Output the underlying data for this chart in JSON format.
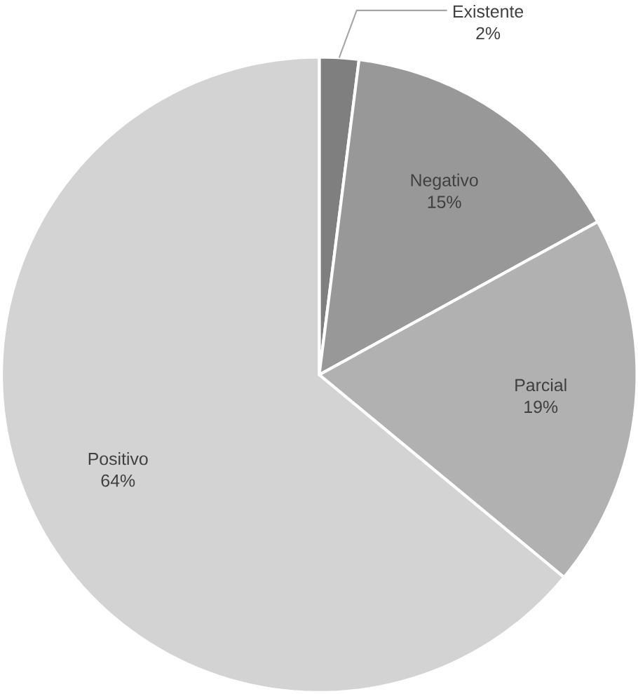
{
  "chart_data": {
    "type": "pie",
    "categories": [
      "Existente",
      "Negativo",
      "Parcial",
      "Positivo"
    ],
    "values": [
      2,
      15,
      19,
      64
    ],
    "value_labels": [
      "2%",
      "15%",
      "19%",
      "64%"
    ],
    "colors": [
      "#7f7f7f",
      "#989898",
      "#b1b1b1",
      "#d3d3d3"
    ]
  }
}
